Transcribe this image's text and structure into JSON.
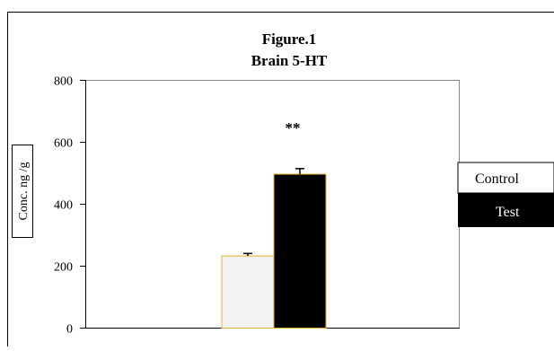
{
  "figure_label": "Figure.1",
  "chart_data": {
    "type": "bar",
    "title": "Brain  5-HT",
    "ylabel": "Conc. ng /g",
    "xlabel": "",
    "ylim": [
      0,
      800
    ],
    "yticks": [
      "0",
      "200",
      "400",
      "600",
      "800"
    ],
    "categories": [
      ""
    ],
    "series": [
      {
        "name": "Control",
        "values": [
          233
        ],
        "error": [
          8
        ],
        "color": "#f2f2f2"
      },
      {
        "name": "Test",
        "values": [
          497
        ],
        "error": [
          18
        ],
        "color": "#000000"
      }
    ],
    "annotations": [
      {
        "series": "Test",
        "text": "**"
      }
    ],
    "legend": {
      "placement": "right",
      "items": [
        "Control",
        "Test"
      ]
    },
    "grid": false
  }
}
